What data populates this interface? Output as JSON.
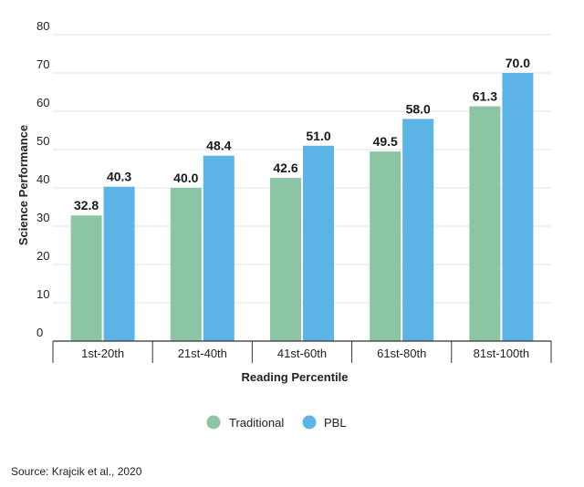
{
  "chart_data": {
    "type": "bar",
    "title": "",
    "xlabel": "Reading Percentile",
    "ylabel": "Science Performance",
    "ylim": [
      0,
      80
    ],
    "yticks": [
      0,
      10,
      20,
      30,
      40,
      50,
      60,
      70,
      80
    ],
    "grid": true,
    "legend_position": "bottom-center",
    "categories": [
      "1st-20th",
      "21st-40th",
      "41st-60th",
      "61st-80th",
      "81st-100th"
    ],
    "series": [
      {
        "name": "Traditional",
        "color": "#8cc5a3",
        "values": [
          32.8,
          40.0,
          42.6,
          49.5,
          61.3
        ],
        "labels": [
          "32.8",
          "40.0",
          "42.6",
          "49.5",
          "61.3"
        ]
      },
      {
        "name": "PBL",
        "color": "#5cb3e6",
        "values": [
          40.3,
          48.4,
          51.0,
          58.0,
          70.0
        ],
        "labels": [
          "40.3",
          "48.4",
          "51.0",
          "58.0",
          "70.0"
        ]
      }
    ],
    "source": "Source:  Krajcik et al., 2020"
  }
}
